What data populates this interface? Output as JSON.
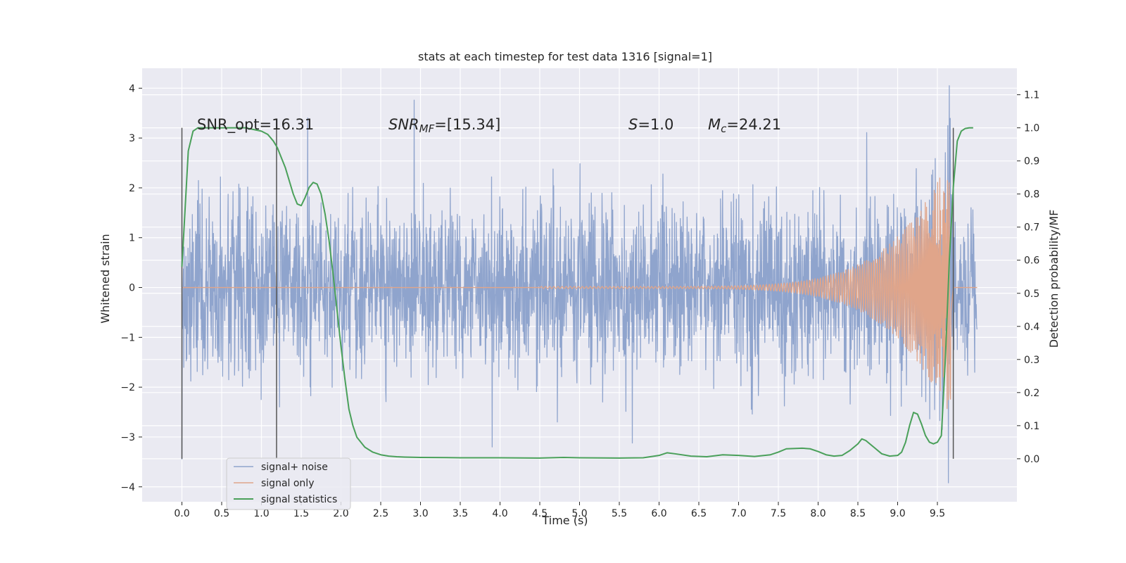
{
  "chart_data": {
    "type": "line",
    "title": "stats at each timestep for test data 1316 [signal=1]",
    "xlabel": "Time (s)",
    "ylabel": "Whitened strain",
    "ylabel_right": "Detection probability/MF",
    "xlim": [
      -0.5,
      10.5
    ],
    "ylim": [
      -4.3,
      4.4
    ],
    "ylim_right": [
      -0.13,
      1.18
    ],
    "x_ticks": [
      "0.0",
      "0.5",
      "1.0",
      "1.5",
      "2.0",
      "2.5",
      "3.0",
      "3.5",
      "4.0",
      "4.5",
      "5.0",
      "5.5",
      "6.0",
      "6.5",
      "7.0",
      "7.5",
      "8.0",
      "8.5",
      "9.0",
      "9.5"
    ],
    "y_ticks": [
      "4",
      "3",
      "2",
      "1",
      "0",
      "−1",
      "−2",
      "−3",
      "−4"
    ],
    "y_ticks_right": [
      "1.1",
      "1.0",
      "0.9",
      "0.8",
      "0.7",
      "0.6",
      "0.5",
      "0.4",
      "0.3",
      "0.2",
      "0.1",
      "0.0"
    ],
    "grid": true,
    "legend_position": "lower-left",
    "annotations": {
      "snr_opt": "SNR_opt=16.31",
      "snr_mf_main": "SNR",
      "snr_mf_sub": "MF",
      "snr_mf_value": "=[15.34]",
      "s_label": "S",
      "s_value": "=1.0",
      "mc_label": "M",
      "mc_sub": "c",
      "mc_value": "=24.21"
    },
    "vertical_markers": [
      0.0,
      1.19,
      9.7
    ],
    "series": [
      {
        "name": "signal+ noise",
        "color": "#8fa4cd",
        "t_range": [
          0.0,
          10.0
        ],
        "band_sigma": 0.85,
        "notable_peaks": [
          {
            "x": 2.92,
            "y": 3.76
          },
          {
            "x": 9.65,
            "y": 4.05
          },
          {
            "x": 9.64,
            "y": -3.92
          },
          {
            "x": 0.0,
            "y": -3.45
          },
          {
            "x": 1.58,
            "y": 3.4
          }
        ]
      },
      {
        "name": "signal only",
        "color": "#e0a58a",
        "description_points": {
          "t_start": 4.5,
          "t_merger": 9.65,
          "amp_start": 0.02,
          "amp_peak": 2.6
        }
      },
      {
        "name": "signal statistics",
        "color": "#4aa05a",
        "x": [
          0.0,
          0.08,
          0.14,
          0.2,
          0.3,
          0.5,
          0.8,
          1.0,
          1.08,
          1.15,
          1.2,
          1.25,
          1.3,
          1.35,
          1.4,
          1.45,
          1.5,
          1.55,
          1.6,
          1.65,
          1.7,
          1.75,
          1.8,
          1.85,
          1.9,
          1.95,
          2.0,
          2.05,
          2.1,
          2.15,
          2.2,
          2.3,
          2.4,
          2.5,
          2.6,
          2.7,
          2.8,
          3.0,
          3.5,
          4.0,
          4.5,
          4.8,
          5.0,
          5.5,
          5.8,
          6.0,
          6.1,
          6.2,
          6.4,
          6.6,
          6.8,
          7.0,
          7.2,
          7.4,
          7.5,
          7.6,
          7.8,
          7.9,
          8.0,
          8.1,
          8.2,
          8.3,
          8.4,
          8.5,
          8.55,
          8.6,
          8.7,
          8.8,
          8.9,
          9.0,
          9.05,
          9.1,
          9.15,
          9.2,
          9.25,
          9.3,
          9.35,
          9.4,
          9.45,
          9.5,
          9.55,
          9.6,
          9.65,
          9.7,
          9.75,
          9.8,
          9.85,
          9.9,
          9.95
        ],
        "y": [
          0.58,
          0.93,
          0.99,
          1.0,
          1.0,
          1.0,
          1.0,
          0.99,
          0.98,
          0.96,
          0.94,
          0.91,
          0.88,
          0.84,
          0.8,
          0.77,
          0.765,
          0.79,
          0.82,
          0.835,
          0.83,
          0.8,
          0.74,
          0.66,
          0.56,
          0.45,
          0.34,
          0.24,
          0.15,
          0.1,
          0.065,
          0.035,
          0.02,
          0.012,
          0.008,
          0.006,
          0.005,
          0.004,
          0.003,
          0.003,
          0.002,
          0.004,
          0.003,
          0.002,
          0.003,
          0.01,
          0.018,
          0.015,
          0.008,
          0.006,
          0.012,
          0.01,
          0.007,
          0.012,
          0.02,
          0.03,
          0.032,
          0.03,
          0.022,
          0.012,
          0.008,
          0.01,
          0.025,
          0.045,
          0.06,
          0.055,
          0.035,
          0.015,
          0.008,
          0.01,
          0.02,
          0.05,
          0.1,
          0.14,
          0.135,
          0.105,
          0.07,
          0.05,
          0.045,
          0.05,
          0.07,
          0.3,
          0.6,
          0.82,
          0.96,
          0.99,
          0.998,
          1.0,
          1.0
        ]
      }
    ]
  }
}
